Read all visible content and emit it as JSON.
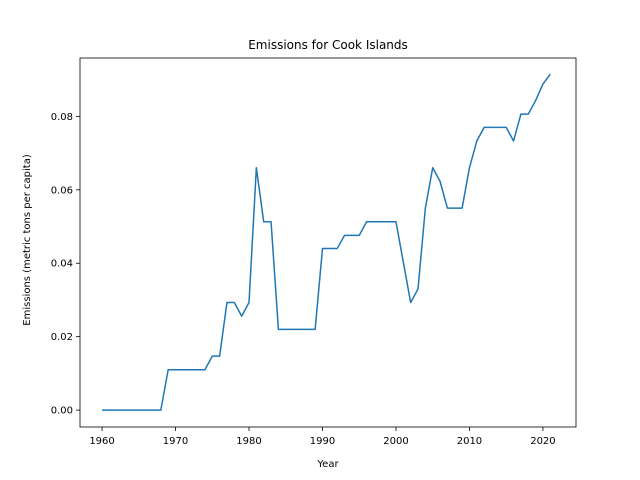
{
  "chart_data": {
    "type": "line",
    "title": "Emissions for Cook Islands",
    "xlabel": "Year",
    "ylabel": "Emissions (metric tons per capita)",
    "xlim": [
      1957,
      2024.5
    ],
    "ylim": [
      -0.0046,
      0.0959
    ],
    "xticks": [
      1960,
      1970,
      1980,
      1990,
      2000,
      2010,
      2020
    ],
    "yticks": [
      0.0,
      0.02,
      0.04,
      0.06,
      0.08
    ],
    "ytick_labels": [
      "0.00",
      "0.02",
      "0.04",
      "0.06",
      "0.08"
    ],
    "grid": false,
    "line_color": "#1f77b4",
    "series": [
      {
        "x": [
          1960,
          1961,
          1962,
          1963,
          1964,
          1965,
          1966,
          1967,
          1968,
          1969,
          1970,
          1971,
          1972,
          1973,
          1974,
          1975,
          1976,
          1977,
          1978,
          1979,
          1980,
          1981,
          1982,
          1983,
          1984,
          1985,
          1986,
          1987,
          1988,
          1989,
          1990,
          1991,
          1992,
          1993,
          1994,
          1995,
          1996,
          1997,
          1998,
          1999,
          2000,
          2001,
          2002,
          2003,
          2004,
          2005,
          2006,
          2007,
          2008,
          2009,
          2010,
          2011,
          2012,
          2013,
          2014,
          2015,
          2016,
          2017,
          2018,
          2019,
          2020,
          2021
        ],
        "values": [
          0,
          0,
          0,
          0,
          0,
          0,
          0,
          0,
          0,
          0.011,
          0.011,
          0.011,
          0.011,
          0.011,
          0.011,
          0.0147,
          0.0147,
          0.0293,
          0.0293,
          0.0256,
          0.0293,
          0.066,
          0.0513,
          0.0513,
          0.022,
          0.022,
          0.022,
          0.022,
          0.022,
          0.022,
          0.044,
          0.044,
          0.044,
          0.0476,
          0.0476,
          0.0476,
          0.0513,
          0.0513,
          0.0513,
          0.0513,
          0.0513,
          0.0403,
          0.0293,
          0.033,
          0.055,
          0.066,
          0.0623,
          0.055,
          0.055,
          0.055,
          0.066,
          0.0733,
          0.077,
          0.077,
          0.077,
          0.077,
          0.0733,
          0.0806,
          0.0806,
          0.0843,
          0.0888,
          0.0915
        ]
      }
    ]
  }
}
